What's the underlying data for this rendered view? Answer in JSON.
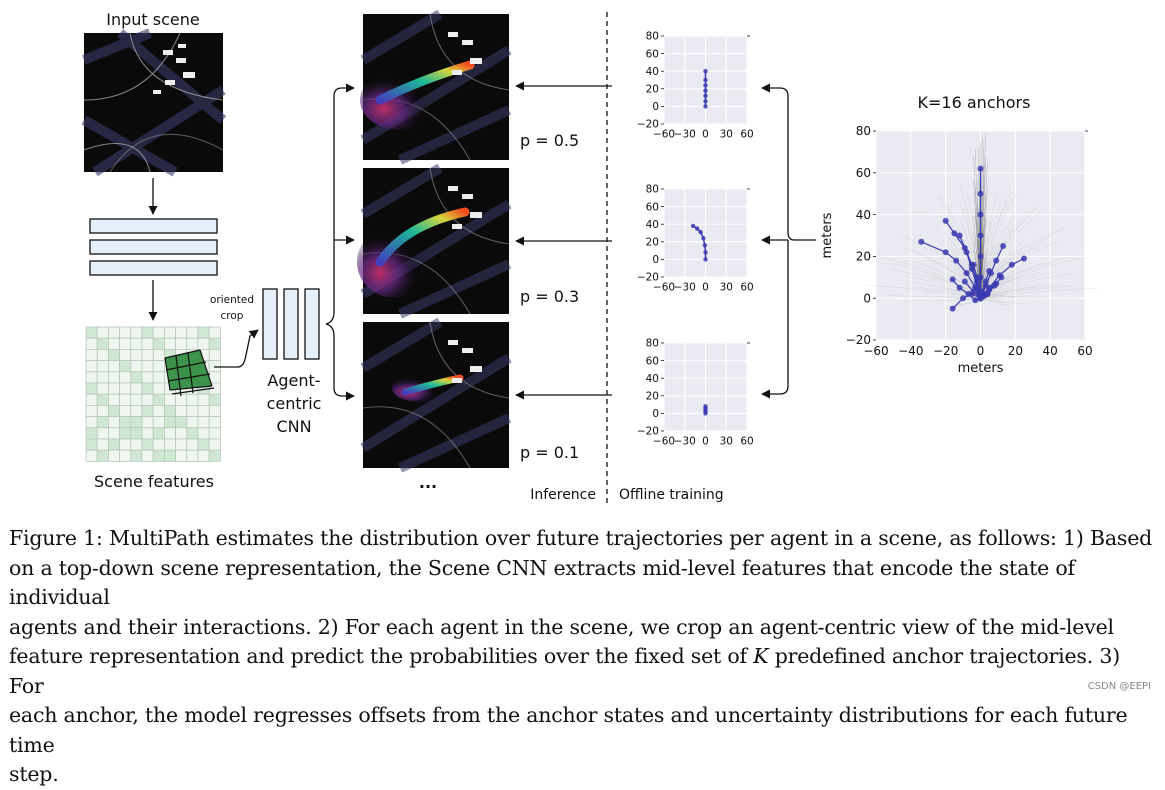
{
  "figure": {
    "input_scene_label": "Input scene",
    "scene_features_label": "Scene features",
    "oriented_crop_label": [
      "oriented",
      "crop"
    ],
    "agent_cnn_label": [
      "Agent-",
      "centric",
      "CNN"
    ],
    "probabilities": [
      "p = 0.5",
      "p = 0.3",
      "p = 0.1"
    ],
    "ellipsis": "...",
    "inference_label": "Inference",
    "offline_training_label": "Offline training",
    "anchors_title": "K=16 anchors",
    "colors": {
      "trajectory_blue": "#3b3bb0",
      "grid_bg": "#eaeaf2",
      "feature_green": "#2a8a3a",
      "feature_box": "#dff0e2"
    }
  },
  "chart_data": [
    {
      "type": "line",
      "title": "",
      "xlabel": "",
      "ylabel": "",
      "xlim": [
        -60,
        60
      ],
      "ylim": [
        -20,
        80
      ],
      "xticks": [
        "−60",
        "−30",
        "0",
        "30",
        "60"
      ],
      "yticks": [
        "80",
        "60",
        "40",
        "20",
        "0",
        "−20"
      ],
      "series": [
        {
          "x": [
            0,
            0,
            0,
            0,
            0,
            0,
            0
          ],
          "y": [
            0,
            6,
            12,
            18,
            24,
            30,
            40
          ]
        }
      ]
    },
    {
      "type": "line",
      "title": "",
      "xlabel": "",
      "ylabel": "",
      "xlim": [
        -60,
        60
      ],
      "ylim": [
        -20,
        80
      ],
      "xticks": [
        "−60",
        "−30",
        "0",
        "30",
        "60"
      ],
      "yticks": [
        "80",
        "60",
        "40",
        "20",
        "0",
        "−20"
      ],
      "series": [
        {
          "x": [
            0,
            0,
            -1,
            -3,
            -7,
            -12,
            -18
          ],
          "y": [
            0,
            8,
            16,
            24,
            31,
            35,
            38
          ]
        }
      ]
    },
    {
      "type": "line",
      "title": "",
      "xlabel": "",
      "ylabel": "",
      "xlim": [
        -60,
        60
      ],
      "ylim": [
        -20,
        80
      ],
      "xticks": [
        "−60",
        "−30",
        "0",
        "30",
        "60"
      ],
      "yticks": [
        "80",
        "60",
        "40",
        "20",
        "0",
        "−20"
      ],
      "series": [
        {
          "x": [
            0,
            0,
            0,
            0,
            0
          ],
          "y": [
            0,
            2,
            4,
            6,
            8
          ]
        }
      ]
    },
    {
      "type": "line",
      "title": "K=16 anchors",
      "xlabel": "meters",
      "ylabel": "meters",
      "xlim": [
        -60,
        60
      ],
      "ylim": [
        -20,
        80
      ],
      "xticks": [
        "−60",
        "−40",
        "−20",
        "0",
        "20",
        "40",
        "60"
      ],
      "yticks": [
        "80",
        "60",
        "40",
        "20",
        "0",
        "−20"
      ],
      "series": [
        {
          "x": [
            0,
            0,
            0,
            0,
            0,
            0,
            0
          ],
          "y": [
            0,
            10,
            20,
            30,
            40,
            50,
            62
          ]
        },
        {
          "x": [
            0,
            -2,
            -5,
            -9,
            -15,
            -20
          ],
          "y": [
            0,
            8,
            16,
            24,
            31,
            37
          ]
        },
        {
          "x": [
            0,
            -3,
            -8,
            -14,
            -20,
            -34
          ],
          "y": [
            0,
            5,
            12,
            18,
            22,
            27
          ]
        },
        {
          "x": [
            0,
            -2,
            -5,
            -8,
            -12
          ],
          "y": [
            0,
            6,
            14,
            22,
            30
          ]
        },
        {
          "x": [
            0,
            3,
            6,
            9,
            13
          ],
          "y": [
            0,
            6,
            12,
            18,
            25
          ]
        },
        {
          "x": [
            0,
            5,
            11,
            18,
            25
          ],
          "y": [
            0,
            5,
            11,
            16,
            19
          ]
        },
        {
          "x": [
            0,
            -3,
            -7,
            -12,
            -16
          ],
          "y": [
            0,
            -1,
            2,
            5,
            9
          ]
        },
        {
          "x": [
            0,
            -5,
            -10,
            -16
          ],
          "y": [
            0,
            2,
            0,
            -5
          ]
        },
        {
          "x": [
            0,
            4,
            8,
            12
          ],
          "y": [
            0,
            2,
            6,
            10
          ]
        },
        {
          "x": [
            0,
            -1,
            -2,
            -4
          ],
          "y": [
            0,
            4,
            10,
            16
          ]
        },
        {
          "x": [
            0,
            1,
            3,
            5
          ],
          "y": [
            0,
            3,
            8,
            13
          ]
        },
        {
          "x": [
            0,
            -4,
            -9
          ],
          "y": [
            0,
            3,
            8
          ]
        },
        {
          "x": [
            0,
            2,
            5,
            9
          ],
          "y": [
            0,
            2,
            4,
            7
          ]
        },
        {
          "x": [
            0,
            -1,
            -3
          ],
          "y": [
            0,
            2,
            5
          ]
        },
        {
          "x": [
            0,
            0,
            0
          ],
          "y": [
            0,
            1,
            3
          ]
        },
        {
          "x": [
            0,
            2,
            4
          ],
          "y": [
            0,
            1,
            2
          ]
        }
      ]
    }
  ],
  "caption": {
    "figure_label": "Figure 1:",
    "lines": [
      "MultiPath estimates the distribution over future trajectories per agent in a scene, as follows: 1) Based",
      "on a top-down scene representation, the Scene CNN extracts mid-level features that encode the state of individual",
      "agents and their interactions. 2) For each agent in the scene, we crop an agent-centric view of the mid-level",
      "feature representation and predict the probabilities over the fixed set of ",
      "K",
      " predefined anchor trajectories. 3) For",
      "each anchor, the model regresses offsets from the anchor states and uncertainty distributions for each future time",
      "step."
    ]
  },
  "watermark": "CSDN @EEPI"
}
